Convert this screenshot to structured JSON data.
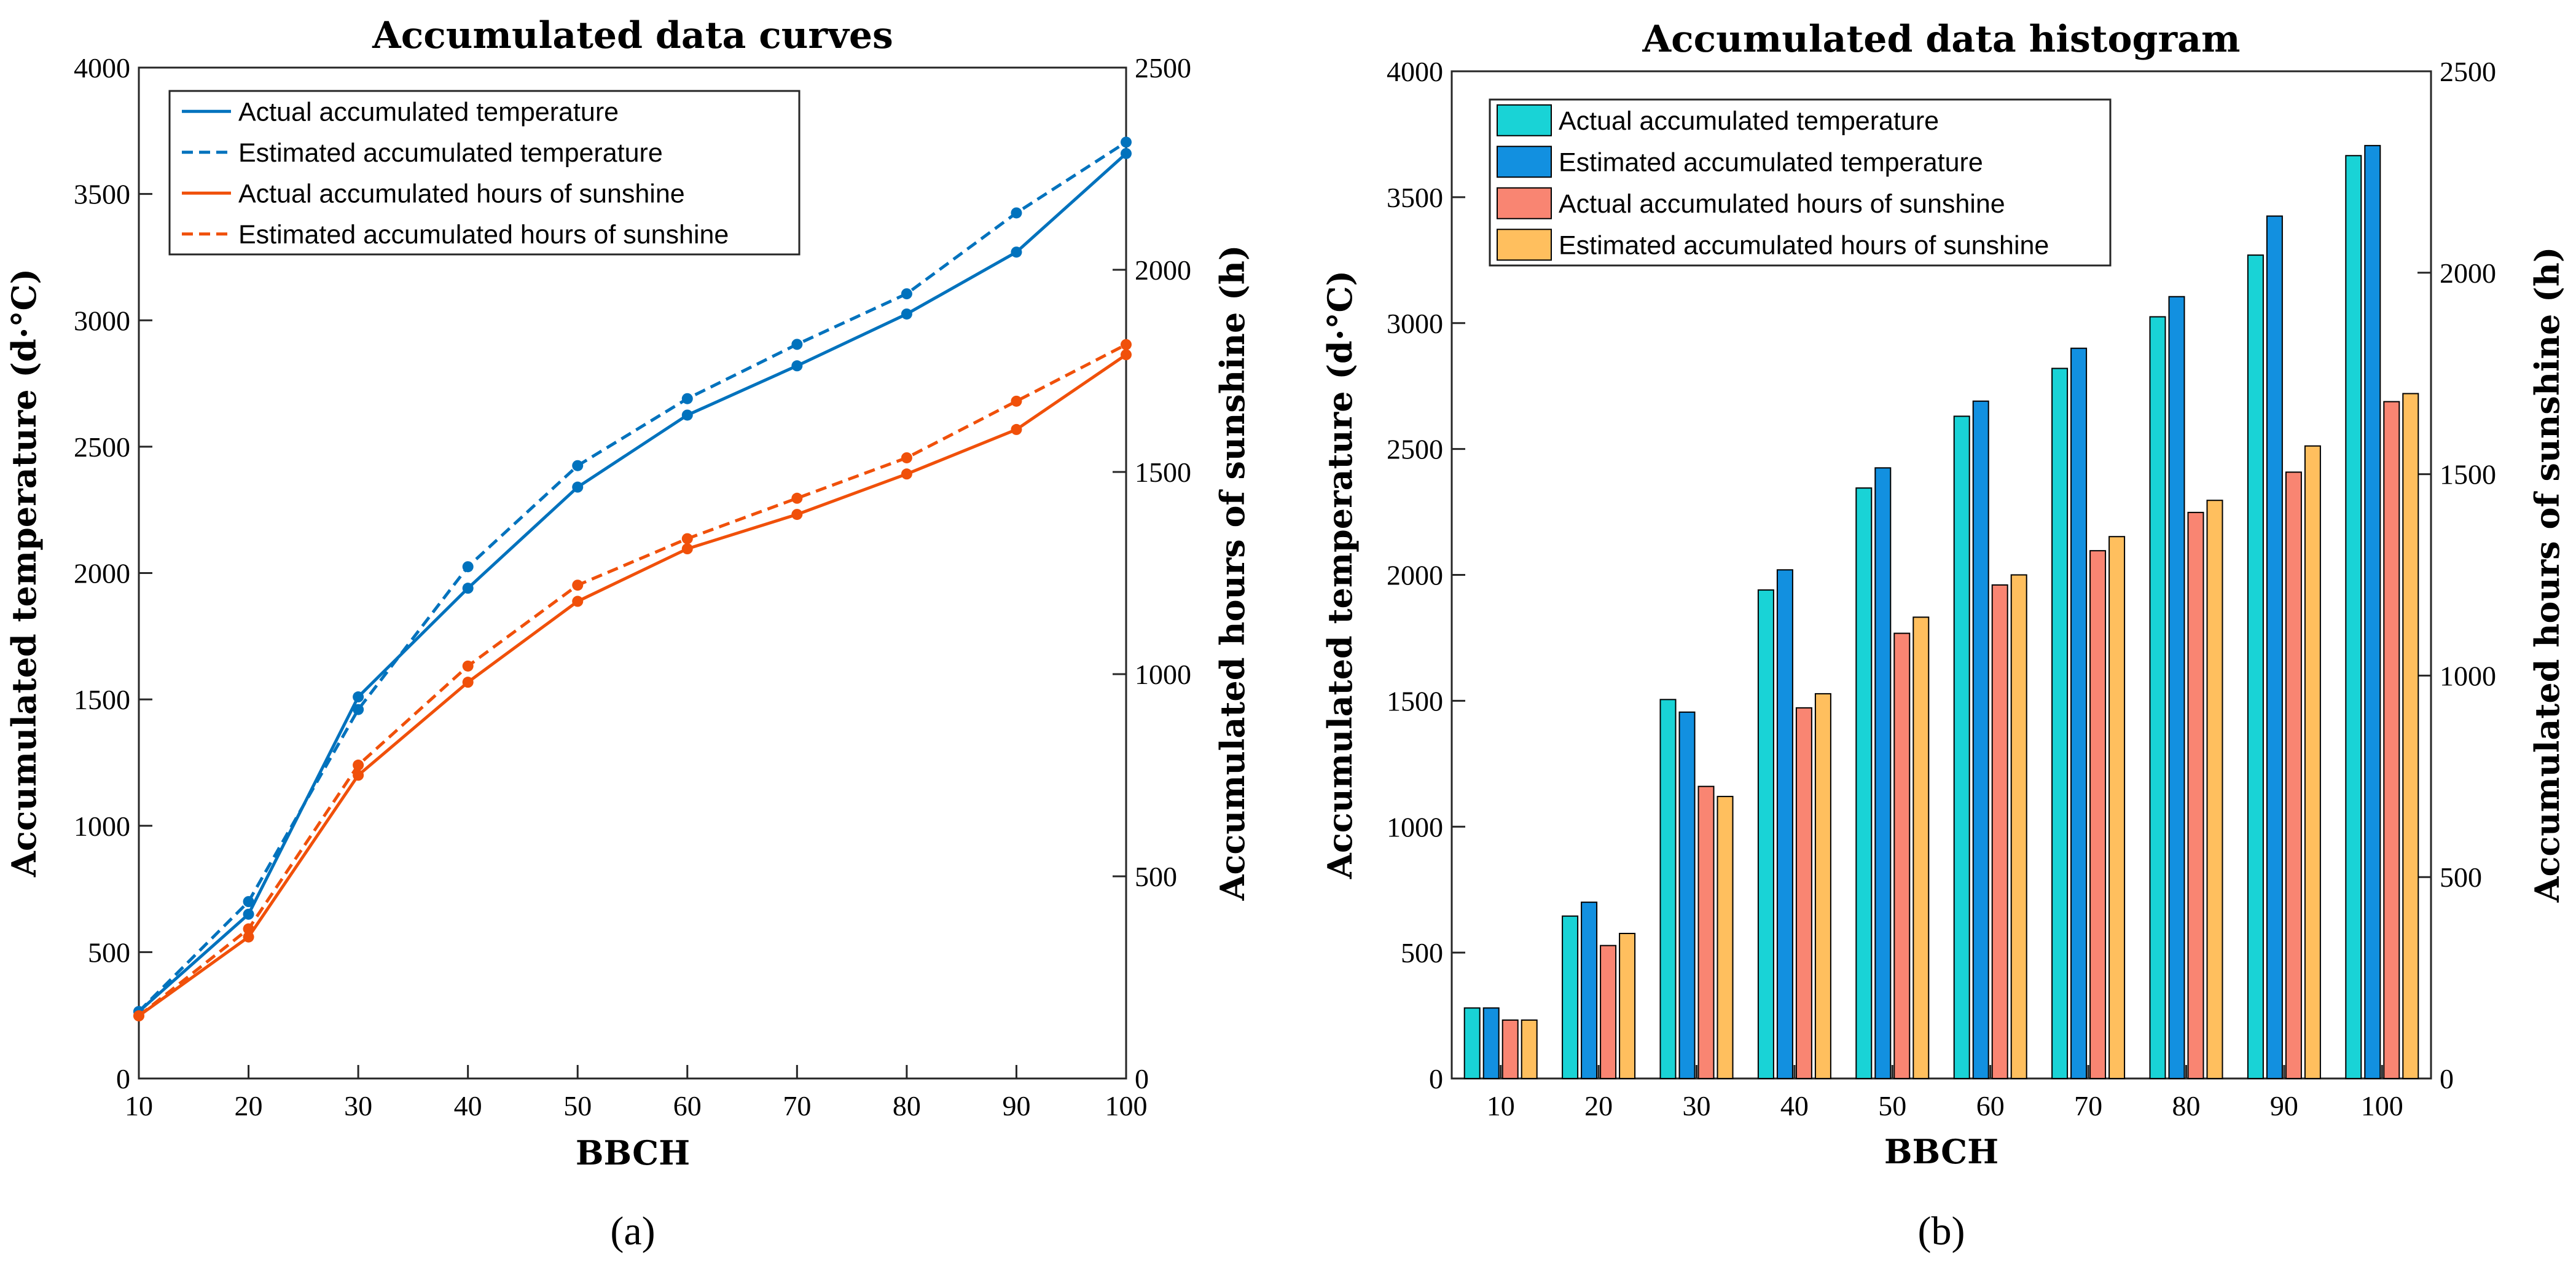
{
  "colors": {
    "actual_temp_line": "#0072BD",
    "estimated_temp_line": "#0072BD",
    "actual_sun_line": "#F0500A",
    "estimated_sun_line": "#F0500A",
    "actual_temp_bar": "#19D3D6",
    "estimated_temp_bar": "#1290E0",
    "actual_sun_bar": "#F98572",
    "estimated_sun_bar": "#FFBF5E"
  },
  "panels": [
    {
      "label": "(a)"
    },
    {
      "label": "(b)"
    }
  ],
  "chart_data": [
    {
      "type": "line",
      "title": "Accumulated data curves",
      "xlabel": "BBCH",
      "ylabel": "Accumulated temperature (d·°C)",
      "y2label": "Accumulated hours of sunshine (h)",
      "x": [
        10,
        20,
        30,
        40,
        50,
        60,
        70,
        80,
        90,
        100
      ],
      "xlim": [
        10,
        100
      ],
      "ylim": [
        0,
        4000
      ],
      "y2lim": [
        0,
        2500
      ],
      "xticks": [
        "10",
        "20",
        "30",
        "40",
        "50",
        "60",
        "70",
        "80",
        "90",
        "100"
      ],
      "yticks": [
        "0",
        "500",
        "1000",
        "1500",
        "2000",
        "2500",
        "3000",
        "3500",
        "4000"
      ],
      "y2ticks": [
        "0",
        "500",
        "1000",
        "1500",
        "2000",
        "2500"
      ],
      "grid": false,
      "legend_position": "top-left",
      "series": [
        {
          "name": "Actual accumulated temperature",
          "axis": "left",
          "style": "solid",
          "values": [
            265,
            650,
            1510,
            1940,
            2340,
            2625,
            2820,
            3025,
            3270,
            3660
          ]
        },
        {
          "name": "Estimated accumulated temperature",
          "axis": "left",
          "style": "dashed",
          "values": [
            265,
            700,
            1460,
            2025,
            2425,
            2690,
            2905,
            3105,
            3425,
            3705
          ]
        },
        {
          "name": "Actual accumulated hours of sunshine",
          "axis": "right",
          "style": "solid",
          "values": [
            155,
            350,
            750,
            980,
            1180,
            1310,
            1395,
            1495,
            1605,
            1790
          ]
        },
        {
          "name": "Estimated accumulated hours of sunshine",
          "axis": "right",
          "style": "dashed",
          "values": [
            155,
            370,
            775,
            1020,
            1220,
            1335,
            1435,
            1535,
            1675,
            1815
          ]
        }
      ]
    },
    {
      "type": "bar",
      "title": "Accumulated data histogram",
      "xlabel": "BBCH",
      "ylabel": "Accumulated temperature (d·°C)",
      "y2label": "Accumulated hours of sunshine (h)",
      "categories": [
        "10",
        "20",
        "30",
        "40",
        "50",
        "60",
        "70",
        "80",
        "90",
        "100"
      ],
      "ylim": [
        0,
        4000
      ],
      "y2lim": [
        0,
        2500
      ],
      "yticks": [
        "0",
        "500",
        "1000",
        "1500",
        "2000",
        "2500",
        "3000",
        "3500",
        "4000"
      ],
      "y2ticks": [
        "0",
        "500",
        "1000",
        "1500",
        "2000",
        "2500"
      ],
      "grid": false,
      "legend_position": "top-left",
      "series": [
        {
          "name": "Actual accumulated temperature",
          "axis": "left",
          "values": [
            280,
            645,
            1505,
            1940,
            2345,
            2630,
            2820,
            3025,
            3270,
            3665
          ]
        },
        {
          "name": "Estimated accumulated temperature",
          "axis": "left",
          "values": [
            280,
            700,
            1455,
            2020,
            2425,
            2690,
            2900,
            3105,
            3425,
            3705
          ]
        },
        {
          "name": "Actual accumulated hours of sunshine",
          "axis": "right",
          "values": [
            145,
            330,
            725,
            920,
            1105,
            1225,
            1310,
            1405,
            1505,
            1680
          ]
        },
        {
          "name": "Estimated accumulated hours of sunshine",
          "axis": "right",
          "values": [
            145,
            360,
            700,
            955,
            1145,
            1250,
            1345,
            1435,
            1570,
            1700
          ]
        }
      ]
    }
  ]
}
